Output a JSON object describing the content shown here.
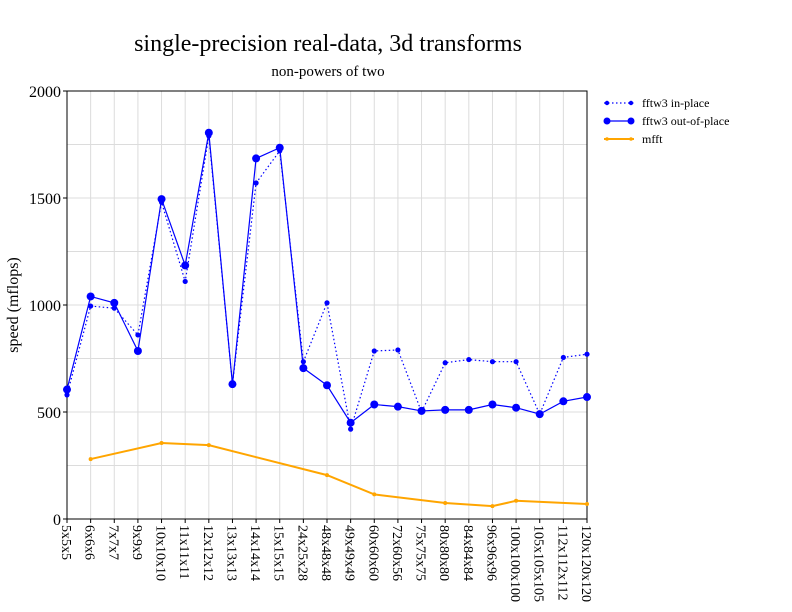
{
  "chart_data": {
    "type": "line",
    "title": "single-precision real-data, 3d transforms",
    "subtitle": "non-powers of two",
    "xlabel": "",
    "ylabel": "speed (mflops)",
    "ylim": [
      0,
      2000
    ],
    "yticks": [
      0,
      500,
      1000,
      1500,
      2000
    ],
    "grid": true,
    "legend_position": "right",
    "categories": [
      "5x5x5",
      "6x6x6",
      "7x7x7",
      "9x9x9",
      "10x10x10",
      "11x11x11",
      "12x12x12",
      "13x13x13",
      "14x14x14",
      "15x15x15",
      "24x25x28",
      "48x48x48",
      "49x49x49",
      "60x60x60",
      "72x60x56",
      "75x75x75",
      "80x80x80",
      "84x84x84",
      "96x96x96",
      "100x100x100",
      "105x105x105",
      "112x112x112",
      "120x120x120"
    ],
    "series": [
      {
        "name": "fftw3 in-place",
        "color": "#0000ff",
        "style": "dotted",
        "values": [
          580,
          995,
          985,
          860,
          1480,
          1110,
          1790,
          630,
          1570,
          1720,
          735,
          1010,
          420,
          785,
          790,
          500,
          730,
          745,
          735,
          735,
          490,
          755,
          770
        ]
      },
      {
        "name": "fftw3 out-of-place",
        "color": "#0000ff",
        "style": "solid",
        "values": [
          605,
          1040,
          1010,
          785,
          1495,
          1185,
          1805,
          630,
          1685,
          1735,
          705,
          625,
          450,
          535,
          525,
          505,
          510,
          510,
          535,
          520,
          490,
          550,
          570
        ]
      },
      {
        "name": "mfft",
        "color": "#ffa500",
        "style": "solid",
        "values": [
          null,
          280,
          null,
          null,
          355,
          null,
          345,
          null,
          null,
          null,
          null,
          205,
          null,
          115,
          null,
          null,
          75,
          null,
          60,
          85,
          null,
          null,
          70
        ]
      }
    ]
  }
}
